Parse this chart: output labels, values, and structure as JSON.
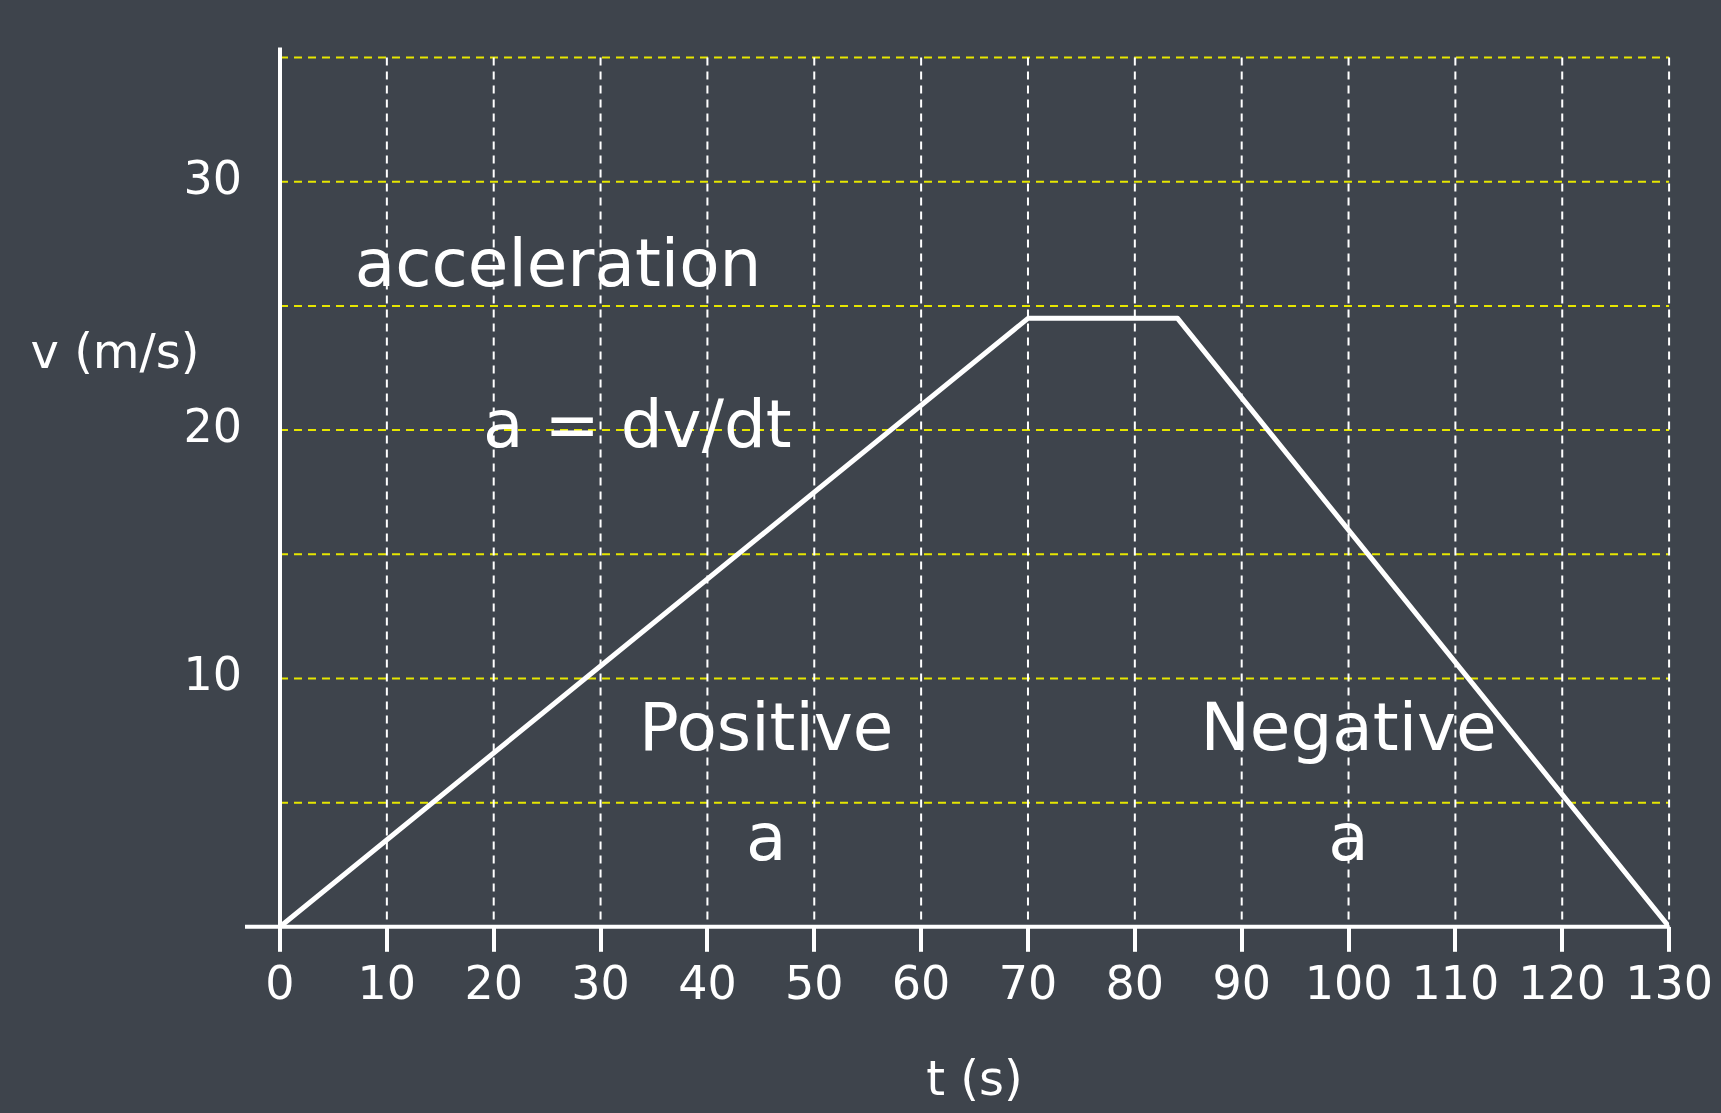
{
  "chart_data": {
    "type": "line",
    "xlabel": "t (s)",
    "ylabel": "v (m/s)",
    "x": [
      0,
      70,
      84,
      130
    ],
    "series": [
      {
        "color": "#ffffff",
        "values": [
          0,
          24.5,
          24.5,
          0
        ]
      }
    ],
    "xlim": [
      0,
      130
    ],
    "xticks": [
      0,
      10,
      20,
      30,
      40,
      50,
      60,
      70,
      80,
      90,
      100,
      110,
      120,
      130
    ],
    "ylim": [
      0,
      35
    ],
    "yticks": [
      {
        "value": 0,
        "label": null
      },
      {
        "value": 5,
        "label": null
      },
      10,
      {
        "value": 15,
        "label": null
      },
      20,
      {
        "value": 25,
        "label": null
      },
      30,
      {
        "value": 35,
        "label": null
      }
    ],
    "grid": true,
    "legend": false,
    "marker": "none",
    "line_style": "solid",
    "annotations": [
      "acceleration",
      "a = dv/dt",
      "Positive a",
      "Negative a"
    ]
  }
}
